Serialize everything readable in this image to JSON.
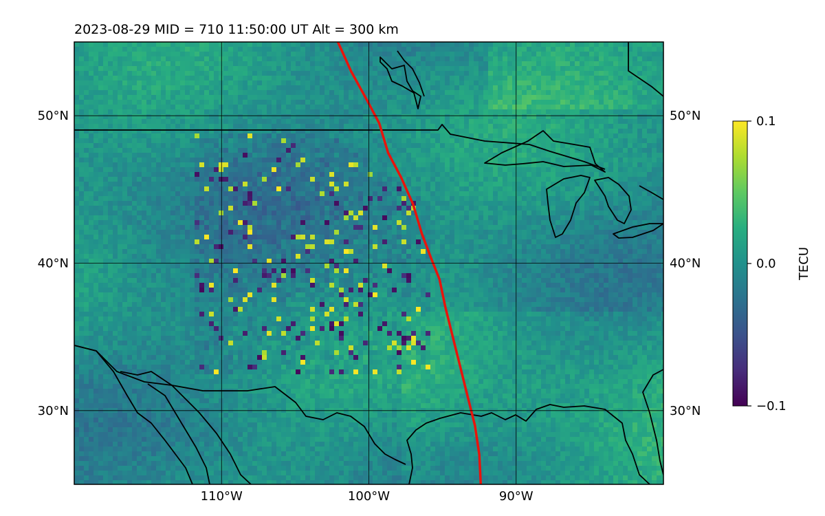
{
  "title": "2023-08-29  MID = 710    11:50:00  UT  Alt = 300 km",
  "map": {
    "lon_range": [
      -120,
      -80
    ],
    "lat_range": [
      25,
      55
    ],
    "lon_ticks": [
      {
        "value": -110,
        "label": "110°W"
      },
      {
        "value": -100,
        "label": "100°W"
      },
      {
        "value": -90,
        "label": "90°W"
      }
    ],
    "lat_ticks": [
      {
        "value": 50,
        "label": "50°N"
      },
      {
        "value": 40,
        "label": "40°N"
      },
      {
        "value": 30,
        "label": "30°N"
      }
    ],
    "grid": true,
    "track_color": "#e8140c",
    "track_points": [
      [
        -102.1,
        55
      ],
      [
        -101.2,
        53
      ],
      [
        -100.1,
        51
      ],
      [
        -99.3,
        49.5
      ],
      [
        -98.7,
        47.5
      ],
      [
        -97.8,
        45.8
      ],
      [
        -97.0,
        44
      ],
      [
        -96.4,
        42
      ],
      [
        -95.8,
        40.4
      ],
      [
        -95.2,
        38.9
      ],
      [
        -94.8,
        37
      ],
      [
        -94.3,
        35
      ],
      [
        -93.8,
        33
      ],
      [
        -93.3,
        31
      ],
      [
        -92.8,
        29
      ],
      [
        -92.5,
        27
      ],
      [
        -92.4,
        25
      ]
    ]
  },
  "colorbar": {
    "label": "TECU",
    "min": -0.1,
    "max": 0.1,
    "ticks": [
      {
        "value": 0.1,
        "label": "0.1"
      },
      {
        "value": 0.0,
        "label": "0.0"
      },
      {
        "value": -0.1,
        "label": "−0.1"
      }
    ],
    "colormap": "viridis"
  }
}
